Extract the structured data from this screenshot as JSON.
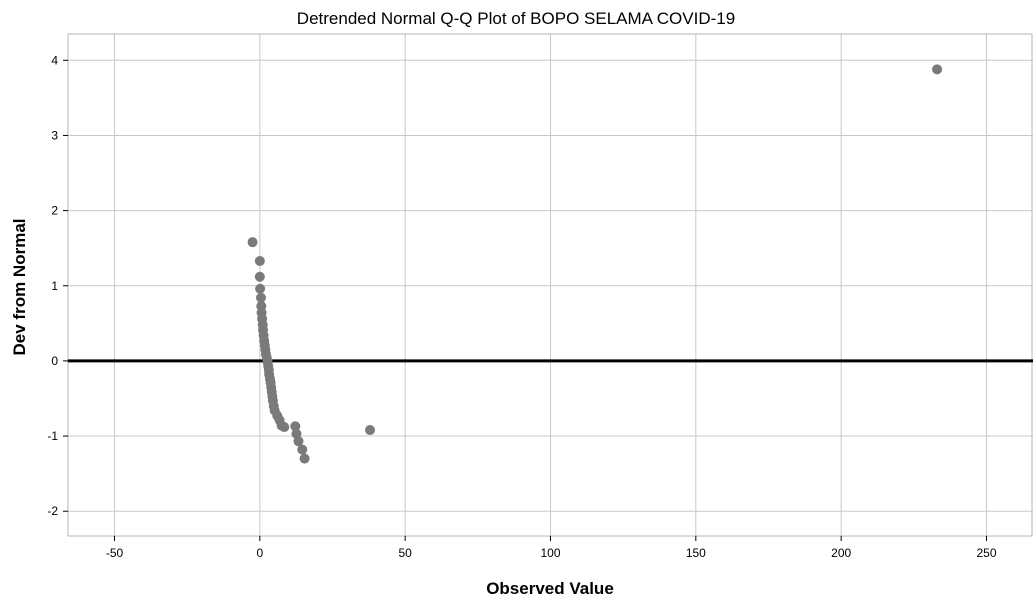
{
  "chart_data": {
    "type": "scatter",
    "title": "Detrended Normal Q-Q Plot of BOPO SELAMA COVID-19",
    "xlabel": "Observed Value",
    "ylabel": "Dev from Normal",
    "xlim": [
      -66,
      266
    ],
    "ylim": [
      -2.33,
      4.35
    ],
    "xticks": [
      -50,
      0,
      50,
      100,
      150,
      200,
      250
    ],
    "yticks": [
      -2,
      -1,
      0,
      1,
      2,
      3,
      4
    ],
    "grid": true,
    "reference_line_y": 0,
    "marker_color": "#7a7a7a",
    "points": [
      {
        "x": -2.5,
        "y": 1.58
      },
      {
        "x": 0.0,
        "y": 1.33
      },
      {
        "x": 0.0,
        "y": 1.12
      },
      {
        "x": 0.1,
        "y": 0.96
      },
      {
        "x": 0.4,
        "y": 0.84
      },
      {
        "x": 0.5,
        "y": 0.73
      },
      {
        "x": 0.6,
        "y": 0.64
      },
      {
        "x": 0.8,
        "y": 0.56
      },
      {
        "x": 1.0,
        "y": 0.48
      },
      {
        "x": 1.1,
        "y": 0.41
      },
      {
        "x": 1.3,
        "y": 0.34
      },
      {
        "x": 1.5,
        "y": 0.27
      },
      {
        "x": 1.7,
        "y": 0.21
      },
      {
        "x": 1.9,
        "y": 0.15
      },
      {
        "x": 2.1,
        "y": 0.09
      },
      {
        "x": 2.4,
        "y": 0.04
      },
      {
        "x": 2.7,
        "y": -0.02
      },
      {
        "x": 2.9,
        "y": -0.07
      },
      {
        "x": 3.1,
        "y": -0.12
      },
      {
        "x": 3.2,
        "y": -0.18
      },
      {
        "x": 3.5,
        "y": -0.24
      },
      {
        "x": 3.7,
        "y": -0.29
      },
      {
        "x": 3.9,
        "y": -0.35
      },
      {
        "x": 4.1,
        "y": -0.41
      },
      {
        "x": 4.3,
        "y": -0.47
      },
      {
        "x": 4.5,
        "y": -0.53
      },
      {
        "x": 4.8,
        "y": -0.6
      },
      {
        "x": 5.1,
        "y": -0.66
      },
      {
        "x": 6.0,
        "y": -0.73
      },
      {
        "x": 6.8,
        "y": -0.79
      },
      {
        "x": 7.5,
        "y": -0.86
      },
      {
        "x": 8.4,
        "y": -0.88
      },
      {
        "x": 12.2,
        "y": -0.87
      },
      {
        "x": 12.6,
        "y": -0.97
      },
      {
        "x": 13.3,
        "y": -1.07
      },
      {
        "x": 14.6,
        "y": -1.18
      },
      {
        "x": 15.4,
        "y": -1.3
      },
      {
        "x": 37.9,
        "y": -0.92
      },
      {
        "x": 233.0,
        "y": 3.88
      }
    ]
  }
}
